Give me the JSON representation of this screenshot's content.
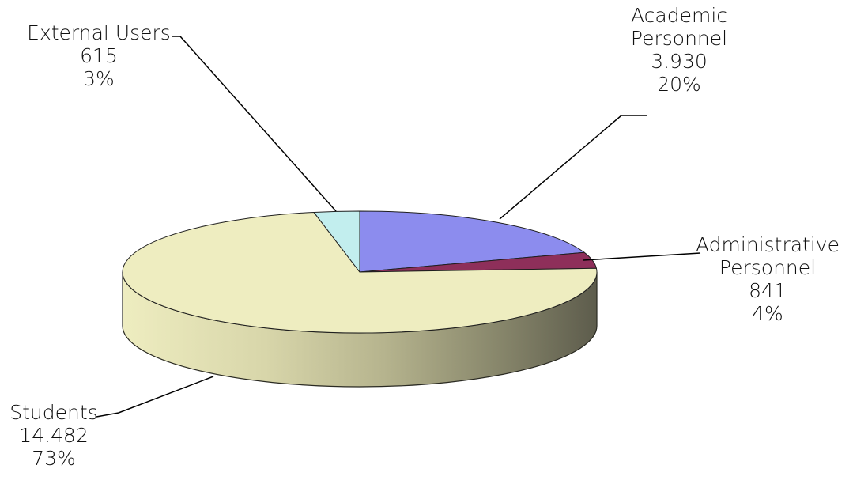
{
  "chart_data": {
    "type": "pie",
    "three_d": true,
    "title": "",
    "legend": "none",
    "slices": [
      {
        "name": "Academic Personnel",
        "label_lines": [
          "Academic",
          "Personnel"
        ],
        "value": 3930,
        "value_label": "3.930",
        "percent_label": "20%",
        "color": "#8C8CEE"
      },
      {
        "name": "Administrative Personnel",
        "label_lines": [
          "Administrative",
          "Personnel"
        ],
        "value": 841,
        "value_label": "841",
        "percent_label": "4%",
        "color": "#8E2F5A"
      },
      {
        "name": "Students",
        "label_lines": [
          "Students"
        ],
        "value": 14482,
        "value_label": "14.482",
        "percent_label": "73%",
        "color": "#EEEDC0"
      },
      {
        "name": "External Users",
        "label_lines": [
          "External Users"
        ],
        "value": 615,
        "value_label": "615",
        "percent_label": "3%",
        "color": "#C2EEEE"
      }
    ]
  }
}
